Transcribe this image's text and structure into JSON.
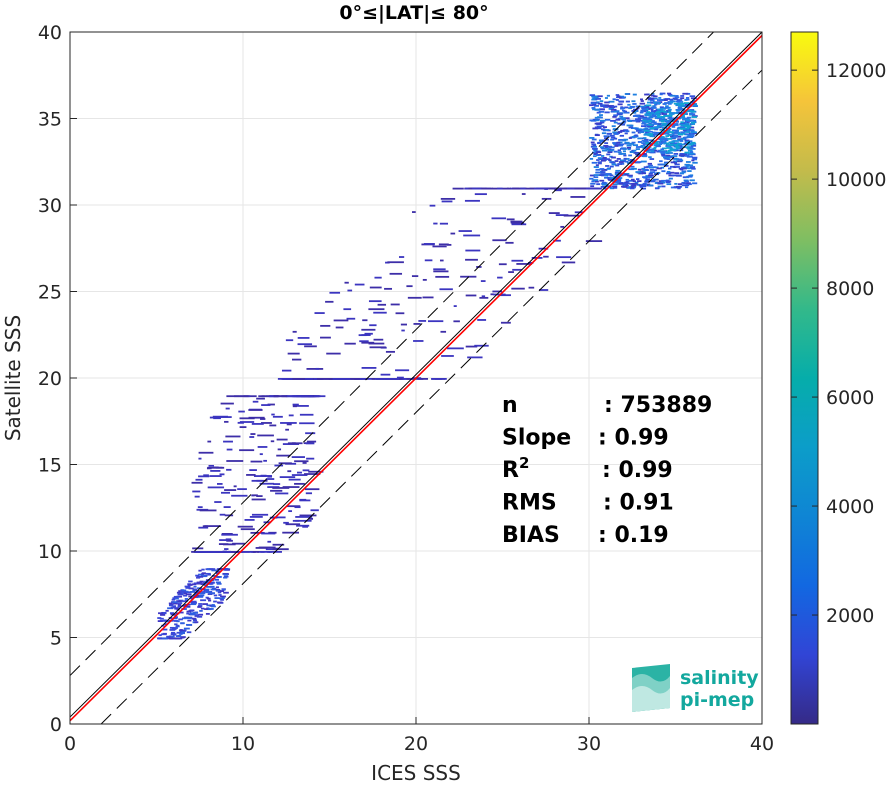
{
  "chart_data": {
    "type": "heatmap",
    "title": "0°≤|LAT|≤ 80°",
    "xlabel": "ICES SSS",
    "ylabel": "Satellite SSS",
    "xlim": [
      0,
      40
    ],
    "ylim": [
      0,
      40
    ],
    "xticks": [
      "0",
      "10",
      "20",
      "30",
      "40"
    ],
    "yticks": [
      "0",
      "5",
      "10",
      "15",
      "20",
      "25",
      "30",
      "35",
      "40"
    ],
    "grid": true,
    "colorbar": {
      "colormap": "parula",
      "range": [
        0,
        12700
      ],
      "ticks": [
        "2000",
        "4000",
        "6000",
        "8000",
        "10000",
        "12000"
      ],
      "tick_values": [
        2000,
        4000,
        6000,
        8000,
        10000,
        12000
      ]
    },
    "lines": [
      {
        "kind": "one-to-one",
        "color": "#000000",
        "style": "solid",
        "x": [
          0,
          40
        ],
        "y": [
          0.4,
          40
        ]
      },
      {
        "kind": "regression",
        "color": "#ff0000",
        "style": "solid",
        "x": [
          0,
          40
        ],
        "y": [
          0.19,
          39.8
        ]
      },
      {
        "kind": "upper-bound",
        "color": "#000000",
        "style": "dashed",
        "x": [
          0,
          40
        ],
        "y": [
          2.8,
          42.8
        ]
      },
      {
        "kind": "lower-bound",
        "color": "#000000",
        "style": "dashed",
        "x": [
          1.8,
          40
        ],
        "y": [
          0,
          37.8
        ]
      }
    ],
    "stats": [
      {
        "label": "n",
        "value": ": 753889"
      },
      {
        "label": "Slope",
        "value": ": 0.99"
      },
      {
        "label": "R",
        "sup": "2",
        "value": ": 0.99"
      },
      {
        "label": "RMS",
        "value": ": 0.91"
      },
      {
        "label": "BIAS",
        "value": ": 0.19"
      }
    ],
    "density_clusters": [
      {
        "x": [
          30,
          36
        ],
        "y": [
          31,
          36.5
        ],
        "density": "high"
      },
      {
        "x": [
          33,
          36
        ],
        "y": [
          33,
          36
        ],
        "density": "peak"
      },
      {
        "x": [
          5,
          9
        ],
        "y": [
          5,
          9
        ],
        "density": "medium"
      },
      {
        "x": [
          12,
          30
        ],
        "y": [
          20,
          31
        ],
        "density": "sparse"
      },
      {
        "x": [
          7,
          14
        ],
        "y": [
          10,
          19
        ],
        "density": "sparse"
      }
    ]
  },
  "logo": {
    "line1": "salinity",
    "line2": "pi-mep"
  }
}
